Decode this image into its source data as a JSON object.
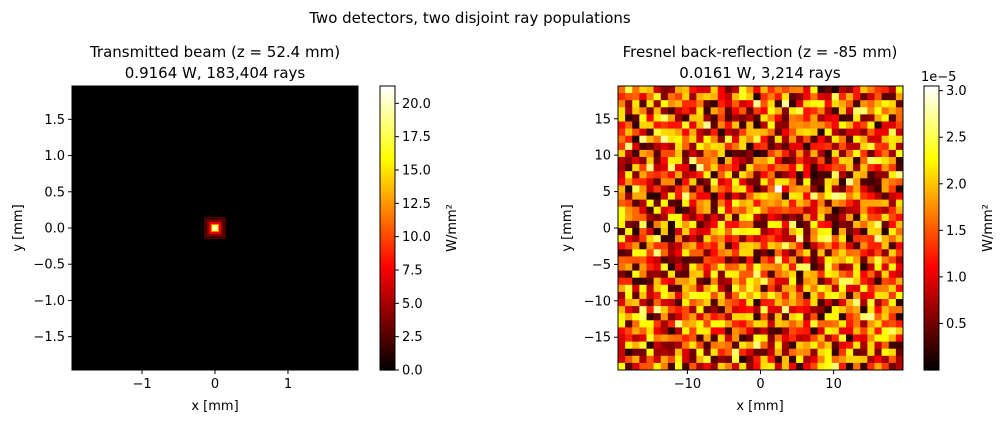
{
  "figure": {
    "suptitle": "Two detectors, two disjoint ray populations"
  },
  "chart_data": [
    {
      "type": "heatmap",
      "title_line1": "Transmitted beam (z = 52.4 mm)",
      "title_line2": "0.9164 W, 183,404 rays",
      "xlabel": "x [mm]",
      "ylabel": "y [mm]",
      "xlim": [
        -1.96,
        1.96
      ],
      "ylim": [
        -1.96,
        1.96
      ],
      "xticks": [
        -1,
        0,
        1
      ],
      "xtick_labels": [
        "−1",
        "0",
        "1"
      ],
      "yticks": [
        -1.5,
        -1.0,
        -0.5,
        0.0,
        0.5,
        1.0,
        1.5
      ],
      "ytick_labels": [
        "−1.5",
        "−1.0",
        "−0.5",
        "0.0",
        "0.5",
        "1.0",
        "1.5"
      ],
      "colormap": "hot",
      "colorbar": {
        "label": "W/mm²",
        "min": 0,
        "max": 21.3,
        "ticks": [
          0,
          2.5,
          5,
          7.5,
          10,
          12.5,
          15,
          17.5,
          20
        ],
        "tick_labels": [
          "0.0",
          "2.5",
          "5.0",
          "7.5",
          "10.0",
          "12.5",
          "15.0",
          "17.5",
          "20.0"
        ],
        "offset_label": ""
      },
      "grid": false,
      "data_description": "narrow central spot",
      "peak": {
        "x": 0,
        "y": 0,
        "value": 21.3
      },
      "background_level": 0.02
    },
    {
      "type": "heatmap",
      "title_line1": "Fresnel back-reflection (z = -85 mm)",
      "title_line2": "0.0161 W, 3,214 rays",
      "xlabel": "x [mm]",
      "ylabel": "y [mm]",
      "xlim": [
        -19.5,
        19.5
      ],
      "ylim": [
        -19.5,
        19.5
      ],
      "xticks": [
        -10,
        0,
        10
      ],
      "xtick_labels": [
        "−10",
        "0",
        "10"
      ],
      "yticks": [
        -15,
        -10,
        -5,
        0,
        5,
        10,
        15
      ],
      "ytick_labels": [
        "−15",
        "−10",
        "−5",
        "0",
        "5",
        "10",
        "15"
      ],
      "colormap": "hot",
      "colorbar": {
        "label": "W/mm²",
        "min": 0,
        "max": 3.05,
        "ticks": [
          0.5,
          1.0,
          1.5,
          2.0,
          2.5,
          3.0
        ],
        "tick_labels": [
          "0.5",
          "1.0",
          "1.5",
          "2.0",
          "2.5",
          "3.0"
        ],
        "offset_label": "1e−5"
      },
      "grid": false,
      "data_description": "uniform noisy distribution across the detector",
      "grid_bins": 40,
      "mean_level": 1.25,
      "hotspot": {
        "x": 2.0,
        "y": 5.5,
        "value": 3.05
      }
    }
  ]
}
